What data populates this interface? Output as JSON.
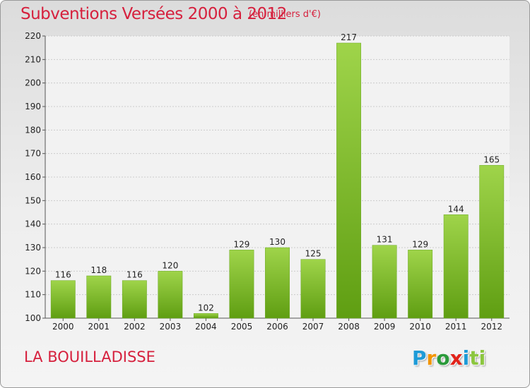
{
  "header": {
    "title": "Subventions Versées 2000 à 2012",
    "unit": "(en milliers d'€)"
  },
  "footer": {
    "commune": "LA BOUILLADISSE",
    "logo": [
      "P",
      "r",
      "o",
      "x",
      "i",
      "ti"
    ]
  },
  "colors": {
    "bar_light": "#9fd44a",
    "bar_dark": "#5f9e12",
    "accent": "#d6203d",
    "grid": "#cccccc"
  },
  "chart_data": {
    "type": "bar",
    "title": "Subventions Versées 2000 à 2012",
    "categories": [
      "2000",
      "2001",
      "2002",
      "2003",
      "2004",
      "2005",
      "2006",
      "2007",
      "2008",
      "2009",
      "2010",
      "2011",
      "2012"
    ],
    "values": [
      116,
      118,
      116,
      120,
      102,
      129,
      130,
      125,
      217,
      131,
      129,
      144,
      165
    ],
    "xlabel": "",
    "ylabel": "",
    "ylim": [
      100,
      220
    ],
    "yticks": [
      100,
      110,
      120,
      130,
      140,
      150,
      160,
      170,
      180,
      190,
      200,
      210,
      220
    ],
    "grid": true,
    "legend": "none"
  }
}
